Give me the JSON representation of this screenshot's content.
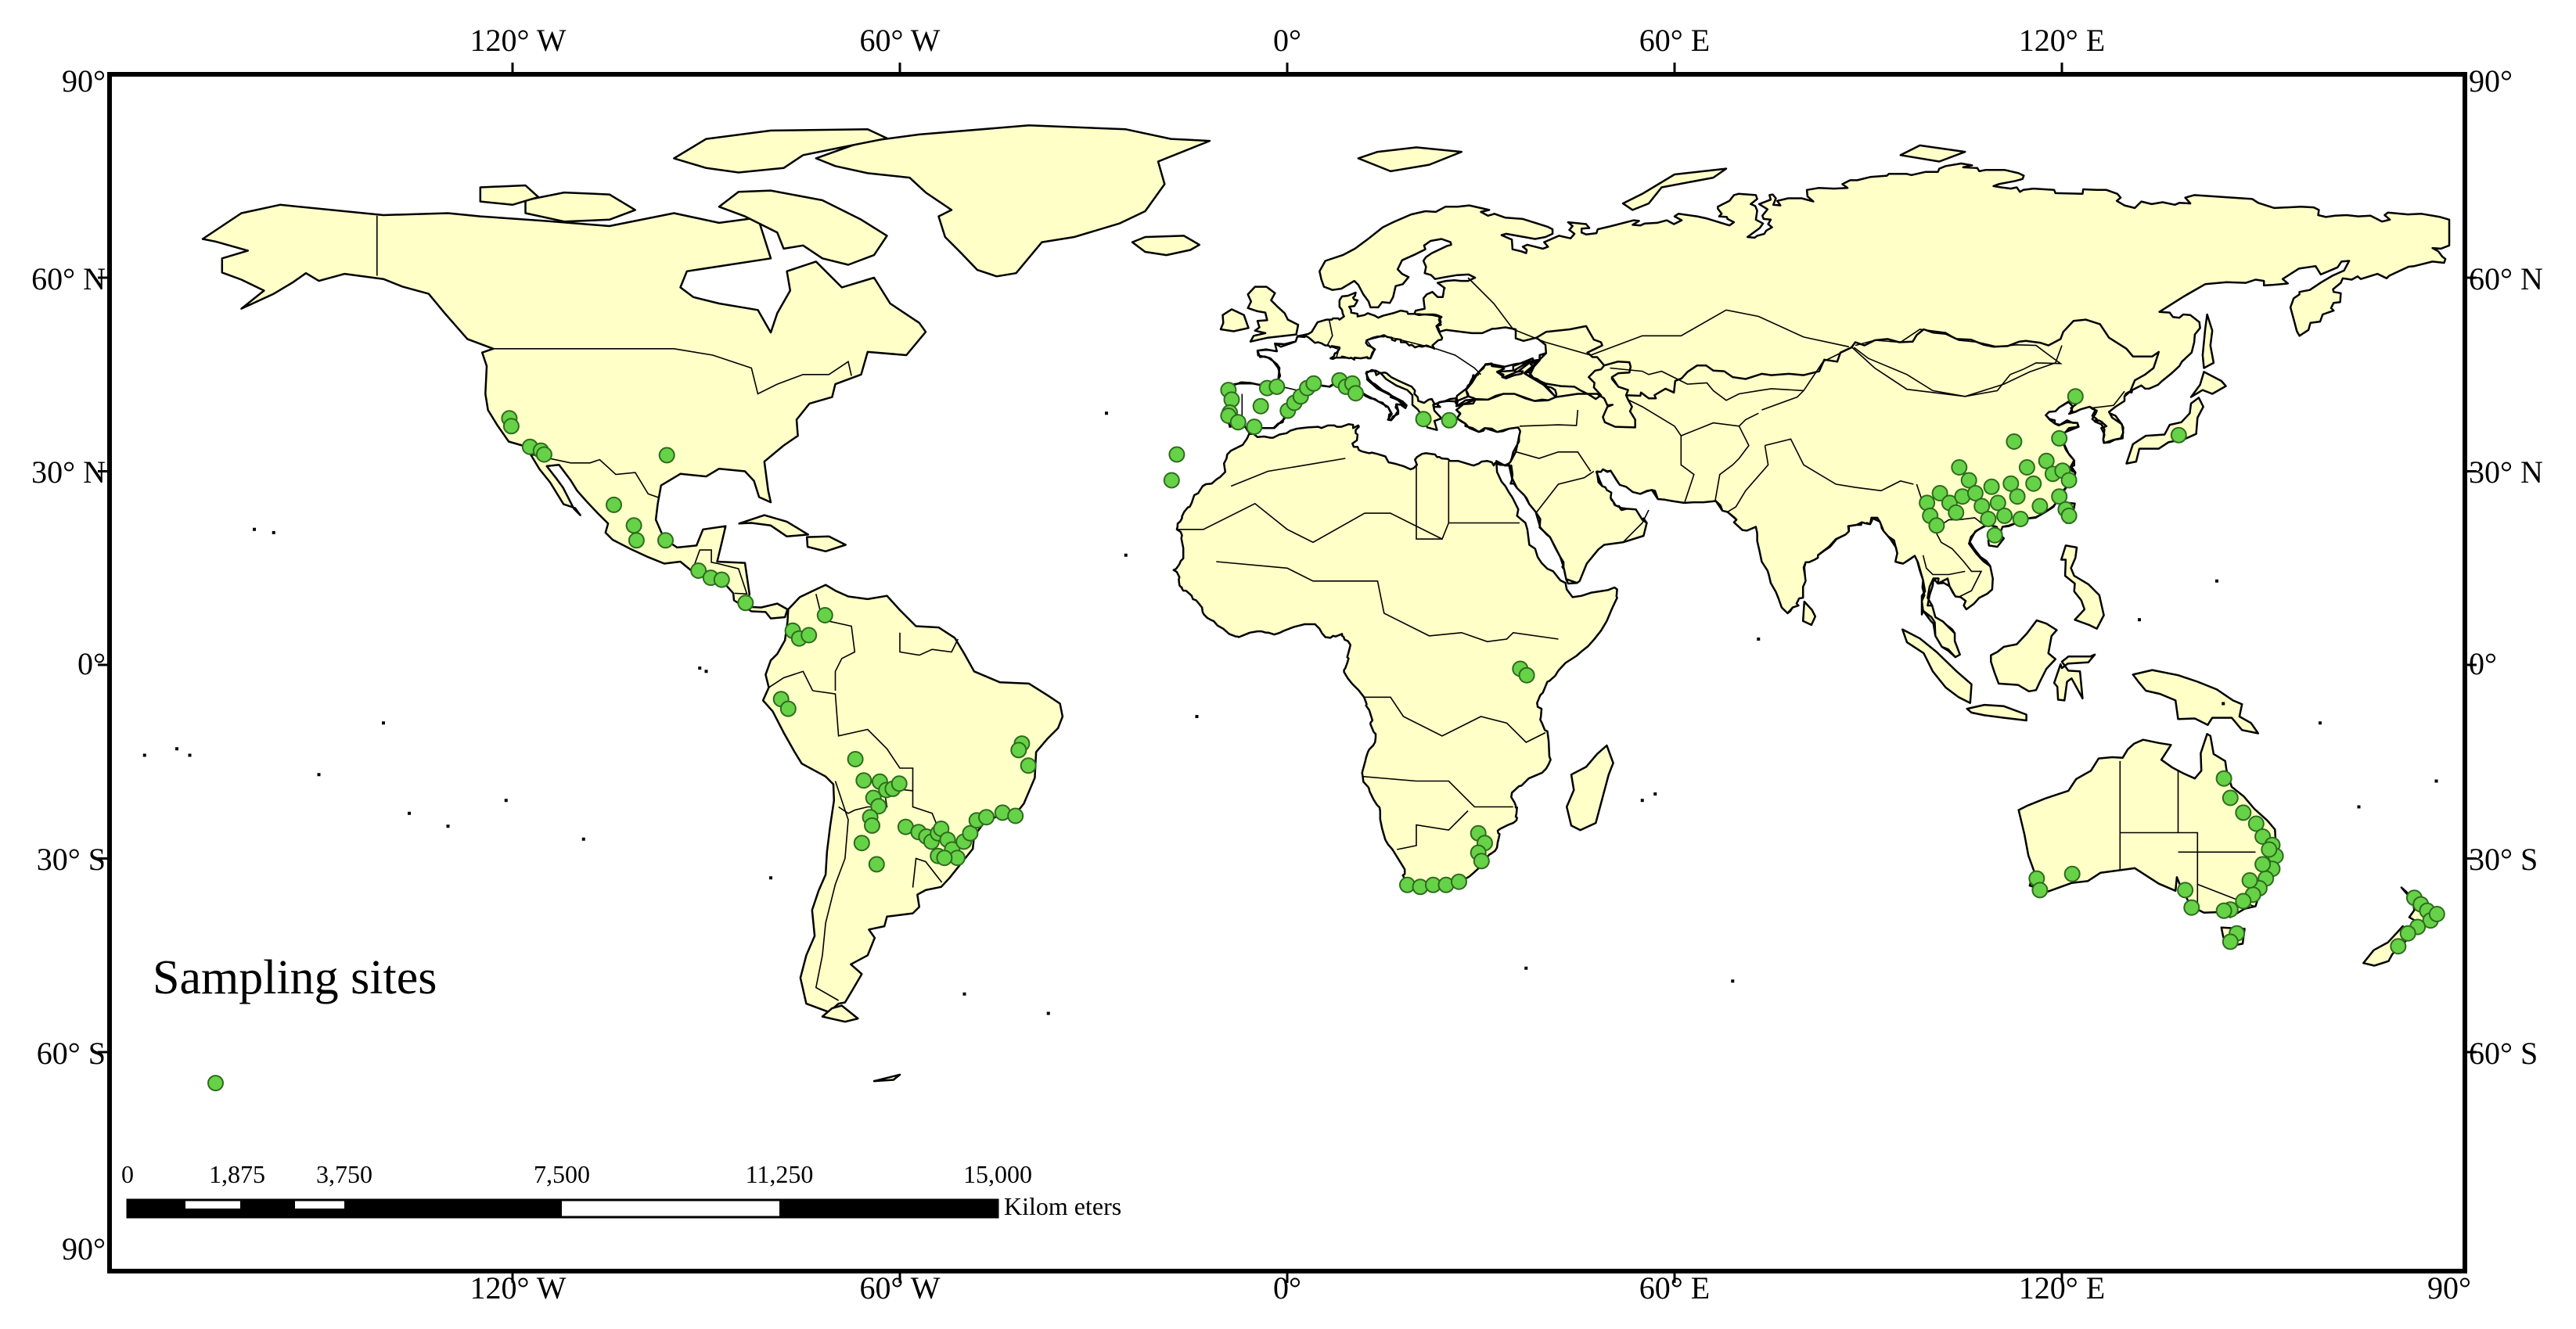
{
  "title": "Sampling sites",
  "axes": {
    "top_labels": [
      "120° W",
      "60° W",
      "0°",
      "60° E",
      "120° E"
    ],
    "bottom_labels": [
      "120° W",
      "60° W",
      "0°",
      "60° E",
      "120° E",
      "90°"
    ],
    "left_labels": [
      "90°",
      "60° N",
      "30° N",
      "0°",
      "30° S",
      "60° S",
      "90°"
    ],
    "right_labels": [
      "90°",
      "60° N",
      "30° N",
      "0°",
      "30° S",
      "60° S"
    ]
  },
  "scale_bar": {
    "tick_labels": [
      "0",
      "1,875",
      "3,750",
      "7,500",
      "11,250",
      "15,000"
    ],
    "unit": "Kilom eters"
  },
  "colors": {
    "land": "#FFFFC8",
    "sites": "#66D247",
    "ocean": "#FFFFFF"
  },
  "sites": [
    {
      "lon": -120.5,
      "lat": 38.2
    },
    {
      "lon": -120.2,
      "lat": 37.0
    },
    {
      "lon": -117.3,
      "lat": 33.8
    },
    {
      "lon": -115.6,
      "lat": 33.2
    },
    {
      "lon": -115.1,
      "lat": 32.6
    },
    {
      "lon": -96.1,
      "lat": 32.5
    },
    {
      "lon": -104.3,
      "lat": 24.8
    },
    {
      "lon": -101.2,
      "lat": 21.6
    },
    {
      "lon": -100.8,
      "lat": 19.3
    },
    {
      "lon": -96.3,
      "lat": 19.3
    },
    {
      "lon": -91.2,
      "lat": 14.6
    },
    {
      "lon": -89.3,
      "lat": 13.5
    },
    {
      "lon": -87.6,
      "lat": 13.2
    },
    {
      "lon": -83.9,
      "lat": 9.6
    },
    {
      "lon": -76.6,
      "lat": 5.3
    },
    {
      "lon": -75.6,
      "lat": 4.1
    },
    {
      "lon": -74.1,
      "lat": 4.6
    },
    {
      "lon": -71.6,
      "lat": 7.7
    },
    {
      "lon": -78.4,
      "lat": -5.3
    },
    {
      "lon": -77.3,
      "lat": -6.8
    },
    {
      "lon": -41.1,
      "lat": -12.2
    },
    {
      "lon": -41.6,
      "lat": -13.2
    },
    {
      "lon": -40.1,
      "lat": -15.6
    },
    {
      "lon": -66.9,
      "lat": -14.6
    },
    {
      "lon": -65.6,
      "lat": -17.9
    },
    {
      "lon": -63.1,
      "lat": -18.1
    },
    {
      "lon": -62.1,
      "lat": -19.4
    },
    {
      "lon": -61.1,
      "lat": -19.2
    },
    {
      "lon": -60.1,
      "lat": -18.4
    },
    {
      "lon": -64.1,
      "lat": -20.6
    },
    {
      "lon": -63.3,
      "lat": -21.9
    },
    {
      "lon": -64.6,
      "lat": -23.6
    },
    {
      "lon": -64.3,
      "lat": -24.9
    },
    {
      "lon": -65.9,
      "lat": -27.6
    },
    {
      "lon": -63.6,
      "lat": -30.9
    },
    {
      "lon": -59.1,
      "lat": -25.1
    },
    {
      "lon": -57.1,
      "lat": -25.9
    },
    {
      "lon": -55.9,
      "lat": -26.6
    },
    {
      "lon": -55.1,
      "lat": -27.4
    },
    {
      "lon": -54.1,
      "lat": -26.1
    },
    {
      "lon": -53.6,
      "lat": -25.4
    },
    {
      "lon": -52.6,
      "lat": -27.1
    },
    {
      "lon": -51.9,
      "lat": -28.6
    },
    {
      "lon": -51.1,
      "lat": -29.9
    },
    {
      "lon": -50.1,
      "lat": -27.4
    },
    {
      "lon": -49.1,
      "lat": -26.1
    },
    {
      "lon": -48.1,
      "lat": -24.1
    },
    {
      "lon": -46.6,
      "lat": -23.6
    },
    {
      "lon": -44.1,
      "lat": -22.9
    },
    {
      "lon": -42.1,
      "lat": -23.4
    },
    {
      "lon": -54.1,
      "lat": -29.6
    },
    {
      "lon": -53.1,
      "lat": -29.9
    },
    {
      "lon": -9.1,
      "lat": 42.6
    },
    {
      "lon": -8.6,
      "lat": 41.1
    },
    {
      "lon": -8.9,
      "lat": 39.1
    },
    {
      "lon": -9.1,
      "lat": 38.6
    },
    {
      "lon": -7.6,
      "lat": 37.6
    },
    {
      "lon": -5.1,
      "lat": 36.9
    },
    {
      "lon": -4.1,
      "lat": 40.1
    },
    {
      "lon": -3.1,
      "lat": 42.9
    },
    {
      "lon": -1.6,
      "lat": 43.1
    },
    {
      "lon": 0.1,
      "lat": 39.4
    },
    {
      "lon": 1.1,
      "lat": 40.6
    },
    {
      "lon": 2.1,
      "lat": 41.6
    },
    {
      "lon": 3.1,
      "lat": 42.9
    },
    {
      "lon": 4.1,
      "lat": 43.6
    },
    {
      "lon": 8.1,
      "lat": 44.1
    },
    {
      "lon": 9.1,
      "lat": 43.1
    },
    {
      "lon": 10.1,
      "lat": 43.6
    },
    {
      "lon": 10.6,
      "lat": 42.1
    },
    {
      "lon": 21.1,
      "lat": 38.1
    },
    {
      "lon": 25.1,
      "lat": 37.9
    },
    {
      "lon": -17.1,
      "lat": 32.6
    },
    {
      "lon": -17.9,
      "lat": 28.6
    },
    {
      "lon": 36.1,
      "lat": -0.6
    },
    {
      "lon": 37.1,
      "lat": -1.6
    },
    {
      "lon": 29.6,
      "lat": -26.1
    },
    {
      "lon": 30.6,
      "lat": -27.6
    },
    {
      "lon": 29.6,
      "lat": -29.1
    },
    {
      "lon": 30.1,
      "lat": -30.4
    },
    {
      "lon": 18.6,
      "lat": -34.1
    },
    {
      "lon": 20.6,
      "lat": -34.4
    },
    {
      "lon": 22.6,
      "lat": -34.1
    },
    {
      "lon": 24.6,
      "lat": -34.1
    },
    {
      "lon": 26.6,
      "lat": -33.6
    },
    {
      "lon": 99.1,
      "lat": 25.1
    },
    {
      "lon": 99.6,
      "lat": 23.1
    },
    {
      "lon": 100.6,
      "lat": 21.6
    },
    {
      "lon": 101.1,
      "lat": 26.6
    },
    {
      "lon": 102.6,
      "lat": 25.1
    },
    {
      "lon": 103.6,
      "lat": 23.6
    },
    {
      "lon": 104.6,
      "lat": 26.1
    },
    {
      "lon": 105.6,
      "lat": 28.6
    },
    {
      "lon": 106.6,
      "lat": 26.6
    },
    {
      "lon": 107.6,
      "lat": 24.6
    },
    {
      "lon": 108.6,
      "lat": 22.6
    },
    {
      "lon": 109.1,
      "lat": 27.6
    },
    {
      "lon": 110.1,
      "lat": 25.1
    },
    {
      "lon": 111.1,
      "lat": 23.1
    },
    {
      "lon": 112.1,
      "lat": 28.1
    },
    {
      "lon": 113.1,
      "lat": 26.1
    },
    {
      "lon": 113.6,
      "lat": 22.6
    },
    {
      "lon": 114.6,
      "lat": 30.6
    },
    {
      "lon": 115.6,
      "lat": 28.1
    },
    {
      "lon": 116.6,
      "lat": 24.6
    },
    {
      "lon": 117.6,
      "lat": 31.6
    },
    {
      "lon": 118.6,
      "lat": 29.6
    },
    {
      "lon": 119.6,
      "lat": 26.1
    },
    {
      "lon": 120.1,
      "lat": 30.1
    },
    {
      "lon": 121.1,
      "lat": 28.6
    },
    {
      "lon": 120.6,
      "lat": 24.1
    },
    {
      "lon": 121.1,
      "lat": 23.1
    },
    {
      "lon": 112.6,
      "lat": 34.6
    },
    {
      "lon": 119.6,
      "lat": 35.1
    },
    {
      "lon": 122.1,
      "lat": 41.6
    },
    {
      "lon": 104.1,
      "lat": 30.6
    },
    {
      "lon": 109.6,
      "lat": 20.1
    },
    {
      "lon": 138.1,
      "lat": 35.6
    },
    {
      "lon": 116.1,
      "lat": -33.1
    },
    {
      "lon": 116.6,
      "lat": -34.9
    },
    {
      "lon": 121.6,
      "lat": -32.4
    },
    {
      "lon": 139.1,
      "lat": -34.9
    },
    {
      "lon": 140.1,
      "lat": -37.6
    },
    {
      "lon": 145.1,
      "lat": -17.6
    },
    {
      "lon": 146.1,
      "lat": -20.6
    },
    {
      "lon": 148.1,
      "lat": -22.9
    },
    {
      "lon": 150.1,
      "lat": -24.6
    },
    {
      "lon": 151.1,
      "lat": -26.6
    },
    {
      "lon": 152.6,
      "lat": -27.9
    },
    {
      "lon": 153.1,
      "lat": -29.6
    },
    {
      "lon": 152.6,
      "lat": -31.6
    },
    {
      "lon": 151.6,
      "lat": -33.1
    },
    {
      "lon": 150.6,
      "lat": -34.6
    },
    {
      "lon": 149.6,
      "lat": -35.6
    },
    {
      "lon": 148.1,
      "lat": -36.6
    },
    {
      "lon": 146.1,
      "lat": -37.9
    },
    {
      "lon": 145.1,
      "lat": -38.1
    },
    {
      "lon": 147.1,
      "lat": -41.6
    },
    {
      "lon": 146.1,
      "lat": -42.9
    },
    {
      "lon": 152.1,
      "lat": -28.6
    },
    {
      "lon": 151.1,
      "lat": -30.9
    },
    {
      "lon": 149.1,
      "lat": -33.4
    },
    {
      "lon": 174.6,
      "lat": -36.1
    },
    {
      "lon": 175.6,
      "lat": -37.1
    },
    {
      "lon": 176.6,
      "lat": -38.1
    },
    {
      "lon": 177.1,
      "lat": -39.6
    },
    {
      "lon": 175.1,
      "lat": -40.6
    },
    {
      "lon": 173.6,
      "lat": -41.6
    },
    {
      "lon": 172.1,
      "lat": -43.6
    },
    {
      "lon": 178.1,
      "lat": -38.6
    },
    {
      "lon": -166.0,
      "lat": -64.8
    }
  ]
}
